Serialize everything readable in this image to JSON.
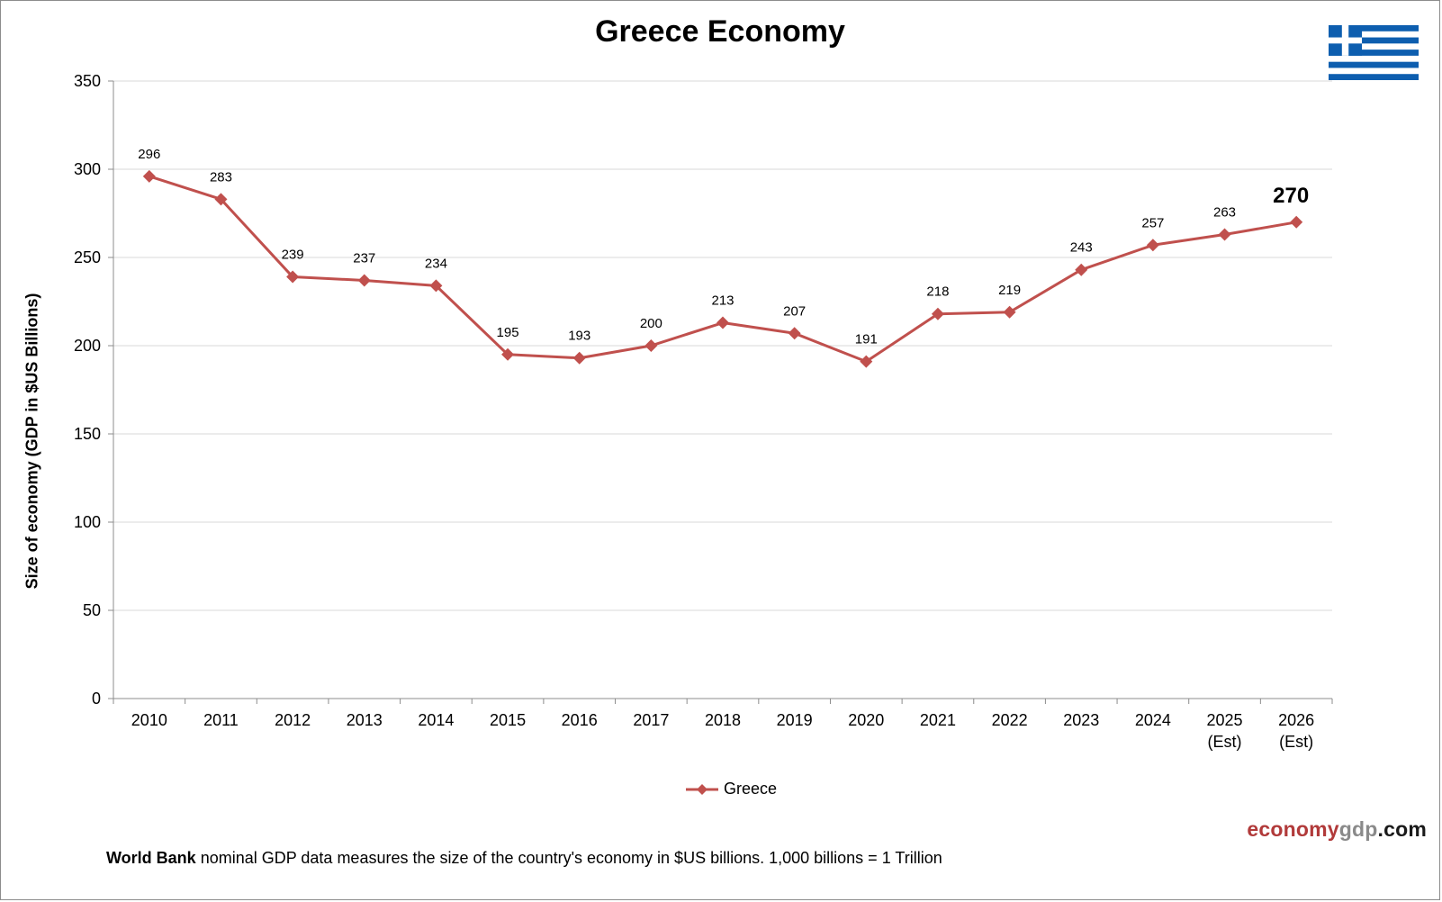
{
  "title": "Greece Economy",
  "colors": {
    "series": "#c0504d",
    "grid": "#d9d9d9",
    "axis": "#8c8c8c",
    "flag_blue": "#0d5eaf"
  },
  "flag_icon": "greece-flag-icon",
  "chart_data": {
    "type": "line",
    "title": "Greece Economy",
    "ylabel": "Size of economy (GDP in $US Billions)",
    "xlabel": "",
    "ylim": [
      0,
      350
    ],
    "yticks": [
      0,
      50,
      100,
      150,
      200,
      250,
      300,
      350
    ],
    "grid": true,
    "legend_position": "bottom-center",
    "categories": [
      [
        "2010"
      ],
      [
        "2011"
      ],
      [
        "2012"
      ],
      [
        "2013"
      ],
      [
        "2014"
      ],
      [
        "2015"
      ],
      [
        "2016"
      ],
      [
        "2017"
      ],
      [
        "2018"
      ],
      [
        "2019"
      ],
      [
        "2020"
      ],
      [
        "2021"
      ],
      [
        "2022"
      ],
      [
        "2023"
      ],
      [
        "2024"
      ],
      [
        "2025",
        "(Est)"
      ],
      [
        "2026",
        "(Est)"
      ]
    ],
    "series": [
      {
        "name": "Greece",
        "values": [
          296,
          283,
          239,
          237,
          234,
          195,
          193,
          200,
          213,
          207,
          191,
          218,
          219,
          243,
          257,
          263,
          270
        ]
      }
    ]
  },
  "brand": {
    "part1": "economy",
    "part2": "gdp",
    "part3": ".com"
  },
  "footnote": {
    "bold": "World Bank",
    "text": " nominal GDP data  measures the size of the country's economy in $US billions.  1,000 billions = 1 Trillion"
  }
}
